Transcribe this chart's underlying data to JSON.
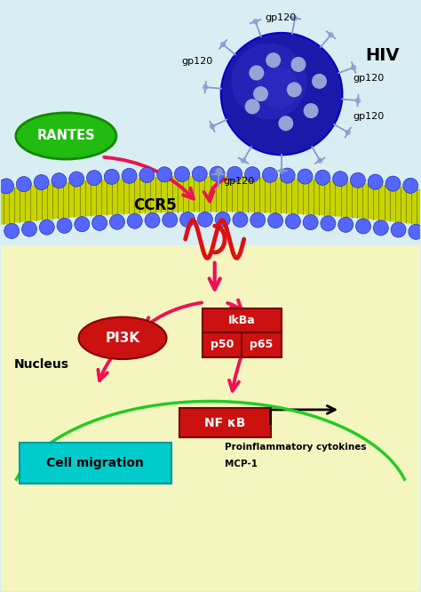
{
  "bg_color": "#d8eef2",
  "bg_bottom_color": "#f5f5c0",
  "membrane_color": "#c8d400",
  "membrane_stripe_color": "#444400",
  "bead_color": "#5566ff",
  "bead_edge_color": "#2233aa",
  "virus_color": "#1a1aaa",
  "virus_edge_color": "#1111aa",
  "virus_spot_color": "#9999cc",
  "spike_color": "#8899cc",
  "rantes_fill": "#22bb11",
  "rantes_edge": "#118800",
  "rantes_text": "RANTES",
  "hiv_text": "HIV",
  "arrow_color": "#ee1155",
  "ccr5_text": "CCR5",
  "ccr5_color": "#ee1155",
  "coil_color": "#dd1111",
  "pi3k_fill": "#cc1111",
  "pi3k_text": "PI3K",
  "ikba_fill": "#cc1111",
  "ikba_text": "IkBa",
  "p50_fill": "#cc1111",
  "p50_text": "p50",
  "p65_fill": "#cc1111",
  "p65_text": "p65",
  "nfkb_fill": "#cc1111",
  "nfkb_text": "NF κB",
  "nucleus_edge": "#22cc22",
  "cell_mig_fill": "#00cccc",
  "cell_mig_edge": "#009999",
  "cell_mig_text": "Cell migration",
  "nucleus_text": "Nucleus",
  "proinflam_text": "Proinflammatory cytokines",
  "mcp1_text": "MCP-1"
}
